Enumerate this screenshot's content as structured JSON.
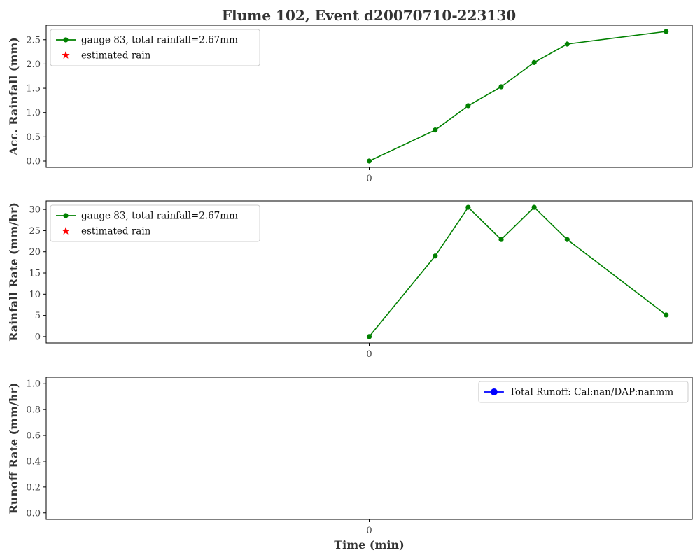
{
  "title": "Flume 102, Event d20070710-223130",
  "colors": {
    "gauge": "#008000",
    "estimated": "#ff0000",
    "runoff": "#0000ff"
  },
  "chart_data": [
    {
      "type": "line",
      "ylabel": "Acc. Rainfall (mm)",
      "xlabel": "",
      "x_ticks": [
        "0"
      ],
      "xlim": [
        -23.5,
        23.5
      ],
      "ylim": [
        -0.13,
        2.8
      ],
      "y_ticks": [
        "0.0",
        "0.5",
        "1.0",
        "1.5",
        "2.0",
        "2.5"
      ],
      "legend_placement": "upper left",
      "series": [
        {
          "name": "gauge 83, total rainfall=2.67mm",
          "marker": "circle",
          "color": "#008000",
          "x": [
            0,
            4.8,
            7.2,
            9.6,
            12,
            14.4,
            21.6
          ],
          "y": [
            0.0,
            0.64,
            1.14,
            1.53,
            2.03,
            2.41,
            2.67
          ]
        },
        {
          "name": "estimated rain",
          "marker": "star",
          "color": "#ff0000",
          "x": [],
          "y": []
        }
      ]
    },
    {
      "type": "line",
      "ylabel": "Rainfall Rate (mm/hr)",
      "xlabel": "",
      "x_ticks": [
        "0"
      ],
      "xlim": [
        -23.5,
        23.5
      ],
      "ylim": [
        -1.5,
        32
      ],
      "y_ticks": [
        "0",
        "5",
        "10",
        "15",
        "20",
        "25",
        "30"
      ],
      "legend_placement": "upper left",
      "series": [
        {
          "name": "gauge 83, total rainfall=2.67mm",
          "marker": "circle",
          "color": "#008000",
          "x": [
            0,
            4.8,
            7.2,
            9.6,
            12,
            14.4,
            21.6
          ],
          "y": [
            0.0,
            19.0,
            30.5,
            22.9,
            30.5,
            22.9,
            5.1
          ]
        },
        {
          "name": "estimated rain",
          "marker": "star",
          "color": "#ff0000",
          "x": [],
          "y": []
        }
      ]
    },
    {
      "type": "line",
      "ylabel": "Runoff Rate (mm/hr)",
      "xlabel": "Time (min)",
      "x_ticks": [
        "0"
      ],
      "xlim": [
        -23.5,
        23.5
      ],
      "ylim": [
        -0.05,
        1.05
      ],
      "y_ticks": [
        "0.0",
        "0.2",
        "0.4",
        "0.6",
        "0.8",
        "1.0"
      ],
      "legend_placement": "upper right",
      "series": [
        {
          "name": "Total Runoff: Cal:nan/DAP:nanmm",
          "marker": "circle",
          "color": "#0000ff",
          "x": [],
          "y": []
        }
      ]
    }
  ]
}
